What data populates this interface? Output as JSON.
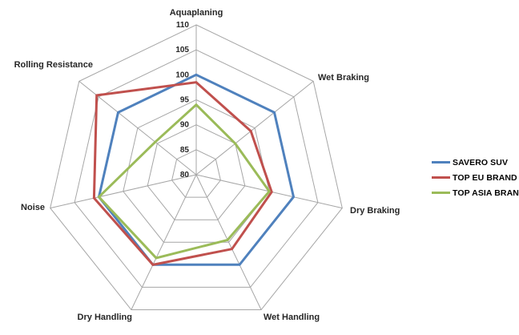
{
  "chart_data": {
    "type": "radar",
    "title": "",
    "categories": [
      "Aquaplaning",
      "Wet Braking",
      "Dry Braking",
      "Wet Handling",
      "Dry Handling",
      "Noise",
      "Rolling Resistance"
    ],
    "series": [
      {
        "name": "SAVERO SUV",
        "color": "#4F81BD",
        "values": [
          100,
          100,
          100,
          100,
          100,
          100,
          100
        ]
      },
      {
        "name": "TOP EU BRAND",
        "color": "#C0504D",
        "values": [
          98.5,
          94,
          95.5,
          96.5,
          100,
          101,
          105.5
        ]
      },
      {
        "name": "TOP ASIA BRAND",
        "color": "#9BBB59",
        "values": [
          94,
          90,
          95,
          94.5,
          98.5,
          100,
          90.5
        ]
      }
    ],
    "scale": {
      "min": 80,
      "max": 110,
      "step": 5,
      "tick_labels": [
        "80",
        "85",
        "90",
        "95",
        "100",
        "105",
        "110"
      ]
    },
    "grid_color": "#A6A6A6",
    "text_color": "#262626",
    "legend_position": "right",
    "grid": "on"
  },
  "legend": {
    "items": [
      "SAVERO SUV",
      "TOP EU BRAND",
      "TOP ASIA BRAND"
    ]
  }
}
